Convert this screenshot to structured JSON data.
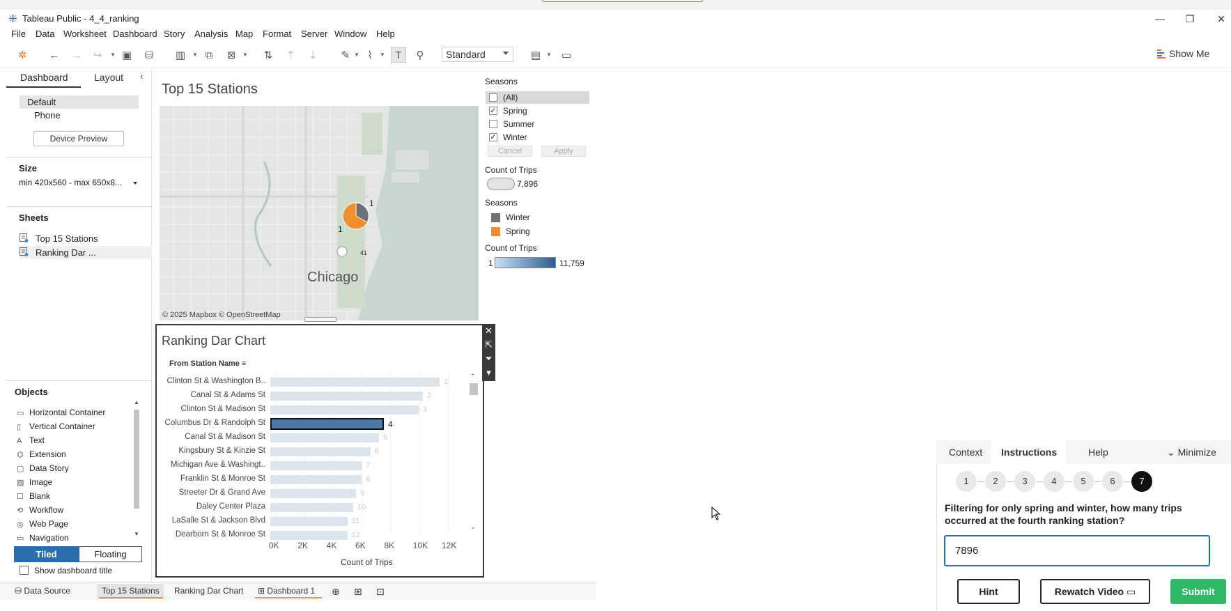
{
  "window": {
    "title": "Tableau Public - 4_4_ranking",
    "controls": [
      "—",
      "❐",
      "✕"
    ]
  },
  "menu": [
    "File",
    "Data",
    "Worksheet",
    "Dashboard",
    "Story",
    "Analysis",
    "Map",
    "Format",
    "Server",
    "Window",
    "Help"
  ],
  "toolbar": {
    "fit_select": "Standard",
    "show_me": "Show Me"
  },
  "left_pane": {
    "tabs": [
      "Dashboard",
      "Layout"
    ],
    "devices": [
      "Default",
      "Phone"
    ],
    "device_preview": "Device Preview",
    "size_header": "Size",
    "size_value": "min 420x560 - max 650x8...",
    "sheets_header": "Sheets",
    "sheets": [
      "Top 15 Stations",
      "Ranking Dar ..."
    ],
    "objects_header": "Objects",
    "objects": [
      {
        "icon": "horizontal-container-icon",
        "glyph": "▭",
        "label": "Horizontal Container"
      },
      {
        "icon": "vertical-container-icon",
        "glyph": "▯",
        "label": "Vertical Container"
      },
      {
        "icon": "text-icon",
        "glyph": "A",
        "label": "Text"
      },
      {
        "icon": "extension-icon",
        "glyph": "⌬",
        "label": "Extension"
      },
      {
        "icon": "data-story-icon",
        "glyph": "▢",
        "label": "Data Story"
      },
      {
        "icon": "image-icon",
        "glyph": "▨",
        "label": "Image"
      },
      {
        "icon": "blank-icon",
        "glyph": "☐",
        "label": "Blank"
      },
      {
        "icon": "workflow-icon",
        "glyph": "⟲",
        "label": "Workflow"
      },
      {
        "icon": "web-page-icon",
        "glyph": "◎",
        "label": "Web Page"
      },
      {
        "icon": "navigation-icon",
        "glyph": "▭",
        "label": "Navigation"
      }
    ],
    "tiled": "Tiled",
    "floating": "Floating",
    "show_title": "Show dashboard title"
  },
  "dashboard": {
    "map_title": "Top 15 Stations",
    "map_city": "Chicago",
    "map_credit": "© 2025 Mapbox © OpenStreetMap",
    "map_route_marker": "41",
    "pie_labels": [
      "1",
      "1"
    ],
    "filter": {
      "title": "Seasons",
      "items": [
        {
          "label": "(All)",
          "checked": false
        },
        {
          "label": "Spring",
          "checked": true
        },
        {
          "label": "Summer",
          "checked": false
        },
        {
          "label": "Winter",
          "checked": true
        }
      ],
      "cancel": "Cancel",
      "apply": "Apply"
    },
    "size_legend": {
      "title": "Count of Trips",
      "value": "7,896"
    },
    "color_legend": {
      "title": "Seasons",
      "items": [
        {
          "label": "Winter",
          "color": "#6e7179"
        },
        {
          "label": "Spring",
          "color": "#f28e2b"
        }
      ]
    },
    "ramp_legend": {
      "title": "Count of Trips",
      "min": "1",
      "max": "11,759"
    }
  },
  "chart_data": {
    "type": "bar",
    "title": "Ranking Dar Chart",
    "column_header": "From Station Name",
    "xlabel": "Count of Trips",
    "xlim": [
      0,
      13000
    ],
    "ticks": [
      "0K",
      "2K",
      "4K",
      "6K",
      "8K",
      "10K",
      "12K"
    ],
    "highlight_rank": 4,
    "categories": [
      "Clinton St & Washington B..",
      "Canal St & Adams St",
      "Clinton St & Madison St",
      "Columbus Dr & Randolph St",
      "Canal St & Madison St",
      "Kingsbury St & Kinzie St",
      "Michigan Ave & Washingt..",
      "Franklin St & Monroe St",
      "Streeter Dr & Grand Ave",
      "Daley Center Plaza",
      "LaSalle St & Jackson Blvd",
      "Dearborn St & Monroe St"
    ],
    "ranks": [
      "1",
      "2",
      "3",
      "4",
      "5",
      "6",
      "7",
      "8",
      "9",
      "10",
      "11",
      "12"
    ],
    "values": [
      11759,
      10600,
      10300,
      7896,
      7550,
      6950,
      6350,
      6350,
      5950,
      5750,
      5350,
      5350
    ]
  },
  "bottom_tabs": {
    "data_source": "Data Source",
    "sheets": [
      "Top 15 Stations",
      "Ranking Dar Chart"
    ],
    "dashboard": "Dashboard 1"
  },
  "instructions": {
    "tabs": [
      "Context",
      "Instructions",
      "Help"
    ],
    "minimize": "Minimize",
    "steps": [
      "1",
      "2",
      "3",
      "4",
      "5",
      "6",
      "7"
    ],
    "current_step": 7,
    "question": "Filtering for only spring and winter, how many trips occurred at the fourth ranking station?",
    "answer": "7896",
    "hint": "Hint",
    "rewatch": "Rewatch Video",
    "submit": "Submit"
  }
}
